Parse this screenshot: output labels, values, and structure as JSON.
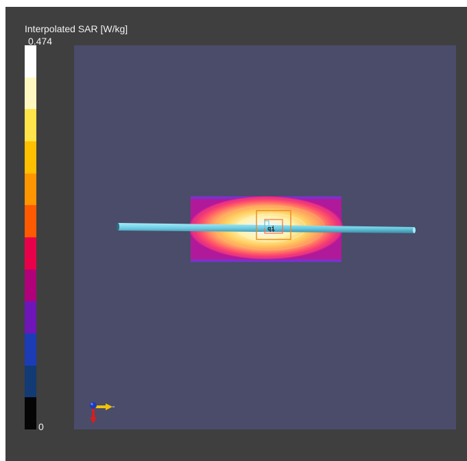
{
  "legend": {
    "title": "Interpolated SAR [W/kg]",
    "max_label": "0.474",
    "min_label": "0",
    "colors": [
      "#ffffff",
      "#fff8c0",
      "#ffe44a",
      "#ffc000",
      "#ff9500",
      "#ff5a00",
      "#e8004a",
      "#b0007a",
      "#6e16b8",
      "#1c3cb6",
      "#123a74",
      "#050505"
    ]
  },
  "scene": {
    "background": "#4a4c6a",
    "antenna_color": "#70d0e6",
    "probe_label": "qį"
  }
}
